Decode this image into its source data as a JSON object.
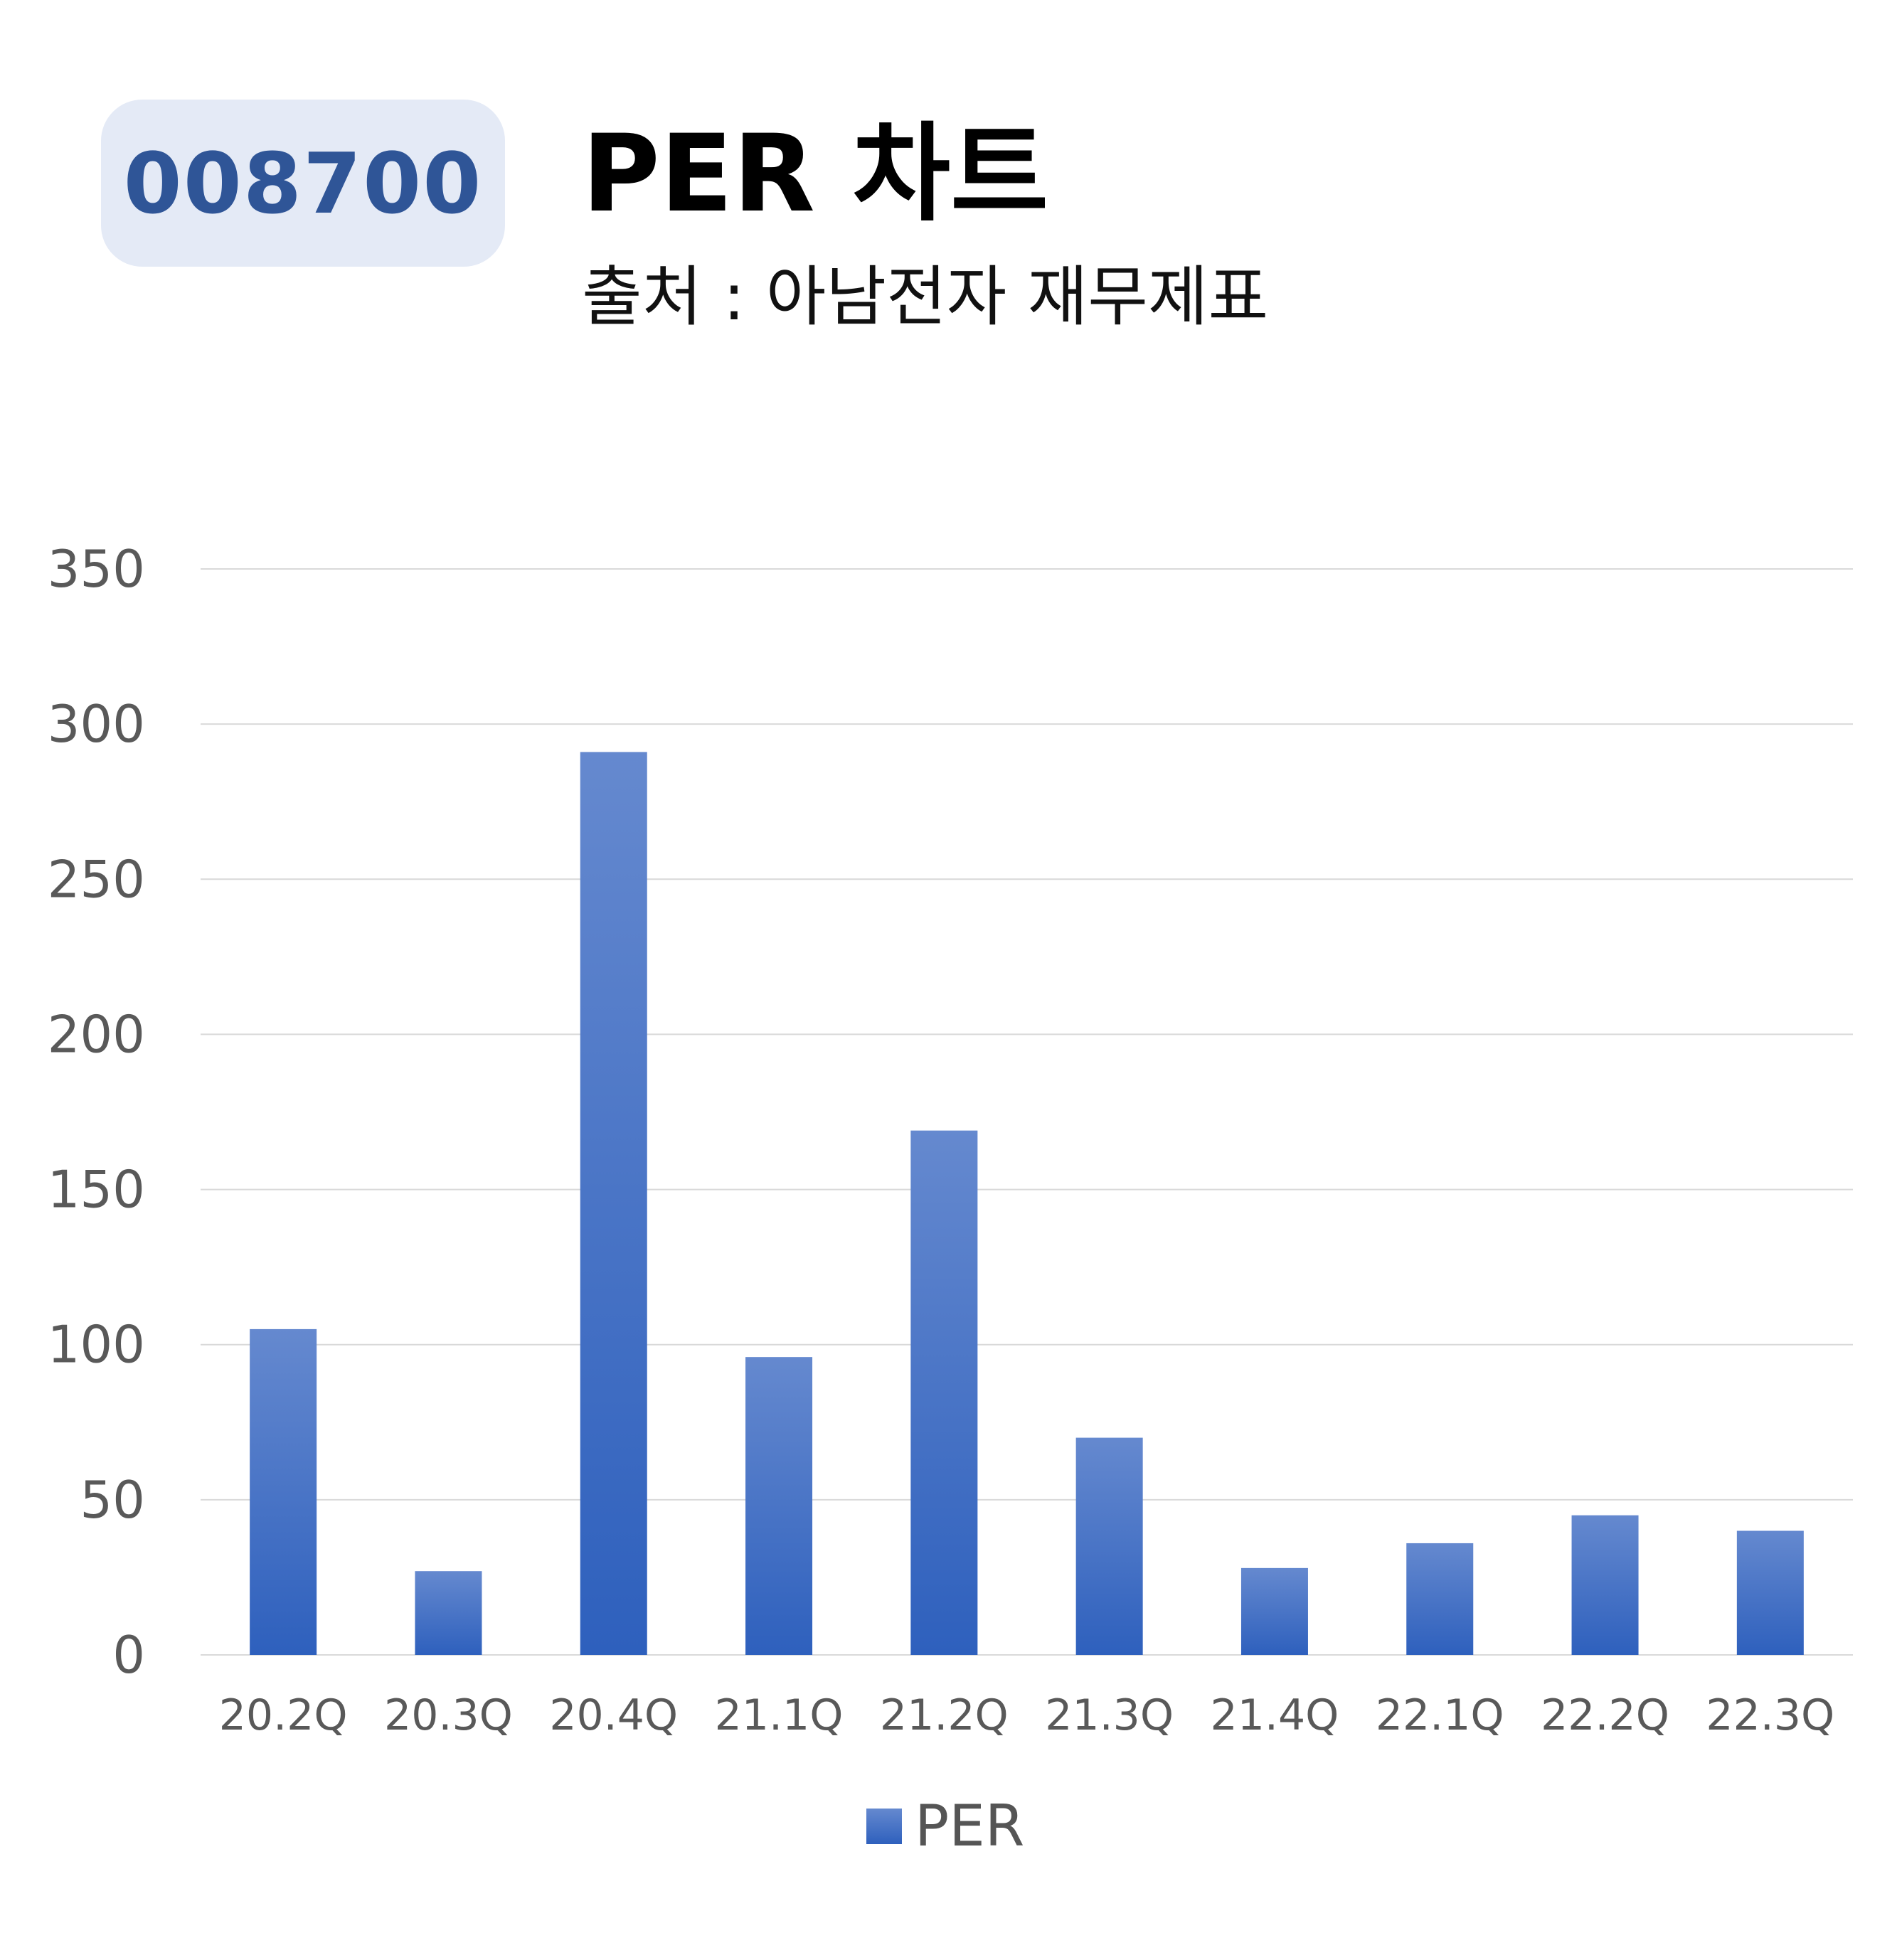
{
  "header": {
    "code": "008700",
    "title": "PER 차트",
    "subtitle": "출처 : 아남전자 재무제표"
  },
  "colors": {
    "badge_bg": "#e4eaf6",
    "badge_text": "#2f5597",
    "bar_top": "#6589cf",
    "bar_bottom": "#2e60bd",
    "grid": "#d9d9d9",
    "tick_text": "#595959"
  },
  "chart_data": {
    "type": "bar",
    "categories": [
      "20.2Q",
      "20.3Q",
      "20.4Q",
      "21.1Q",
      "21.2Q",
      "21.3Q",
      "21.4Q",
      "22.1Q",
      "22.2Q",
      "22.3Q"
    ],
    "series": [
      {
        "name": "PER",
        "values": [
          105,
          27,
          291,
          96,
          169,
          70,
          28,
          36,
          45,
          40
        ]
      }
    ],
    "yticks": [
      "0",
      "50",
      "100",
      "150",
      "200",
      "250",
      "300",
      "350"
    ],
    "ylim": [
      0,
      350
    ],
    "grid": true,
    "legend_position": "bottom"
  },
  "legend": {
    "label": "PER"
  }
}
